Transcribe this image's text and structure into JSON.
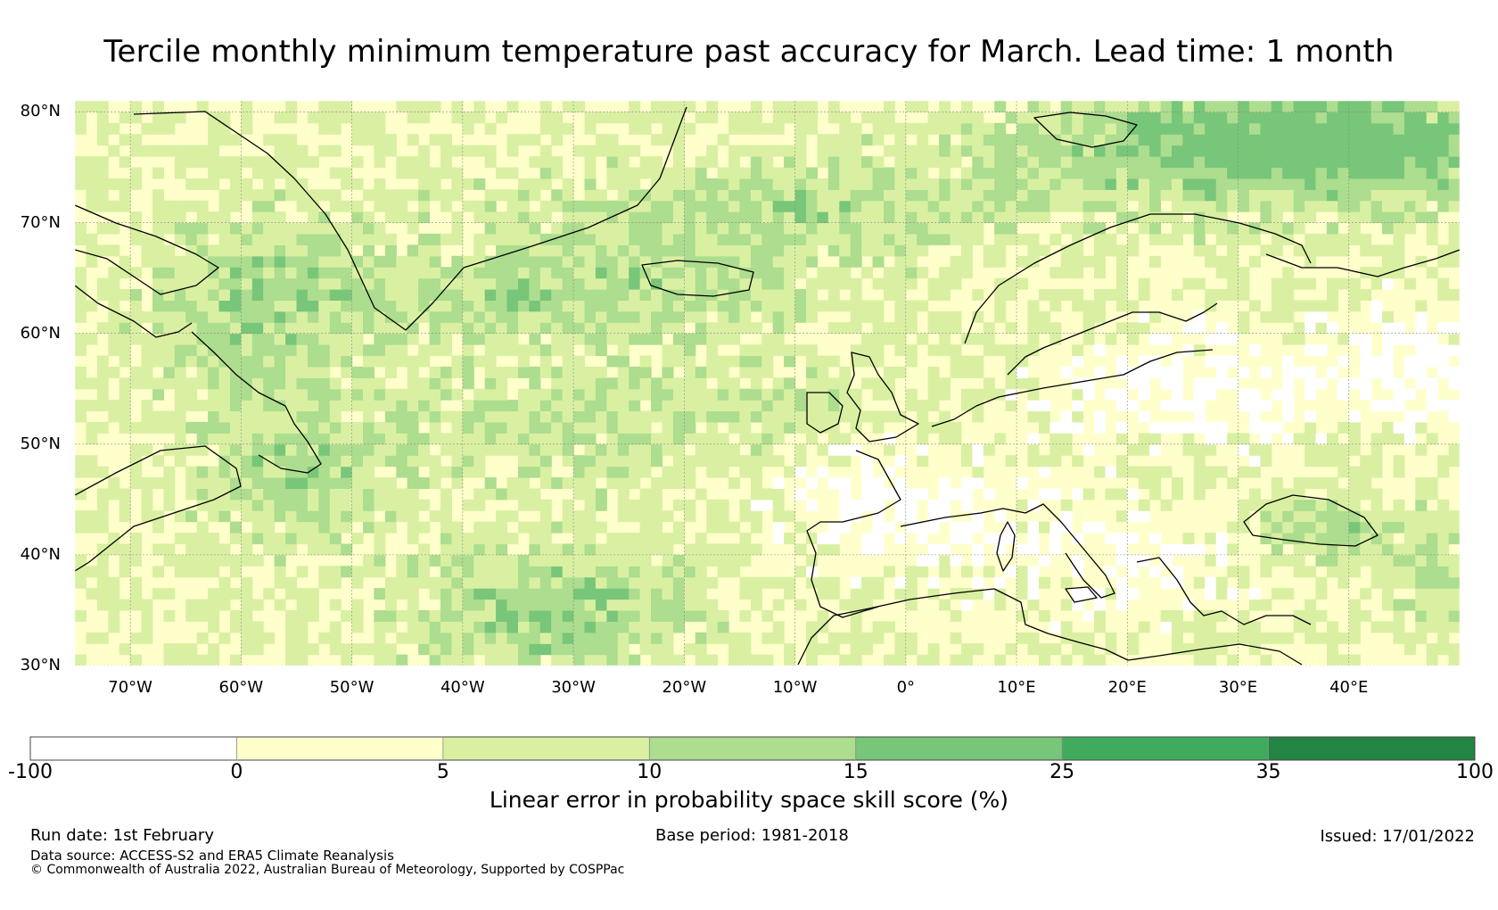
{
  "title": "Tercile monthly minimum temperature past accuracy for March. Lead time: 1 month",
  "map": {
    "lat_labels": [
      "80°N",
      "70°N",
      "60°N",
      "50°N",
      "40°N",
      "30°N"
    ],
    "lon_labels": [
      "70°W",
      "60°W",
      "50°W",
      "40°W",
      "30°W",
      "20°W",
      "10°W",
      "0°",
      "10°E",
      "20°E",
      "30°E",
      "40°E"
    ],
    "lat_values": [
      80,
      70,
      60,
      50,
      40,
      30
    ],
    "lon_values": [
      -70,
      -60,
      -50,
      -40,
      -30,
      -20,
      -10,
      0,
      10,
      20,
      30,
      40
    ],
    "extent": {
      "lon_min": -75,
      "lon_max": 50,
      "lat_min": 30,
      "lat_max": 81
    },
    "land_areas": [
      "Greenland",
      "Iceland",
      "Svalbard",
      "Canada",
      "Europe",
      "North Africa"
    ]
  },
  "colorbar": {
    "ticks": [
      "-100",
      "0",
      "5",
      "10",
      "15",
      "25",
      "35",
      "100"
    ],
    "bin_colors": [
      "#ffffff",
      "#ffffcc",
      "#d9f0a3",
      "#addd8e",
      "#78c679",
      "#41ab5d",
      "#238443"
    ],
    "label": "Linear error in probability space skill score (%)"
  },
  "footer": {
    "run_date": "Run date: 1st February",
    "base_period": "Base period: 1981-2018",
    "issued": "Issued: 17/01/2022",
    "data_source": "Data source: ACCESS-S2 and ERA5 Climate Reanalysis",
    "copyright": "© Commonwealth of Australia 2022, Australian Bureau of Meteorology, Supported by COSPPac"
  }
}
